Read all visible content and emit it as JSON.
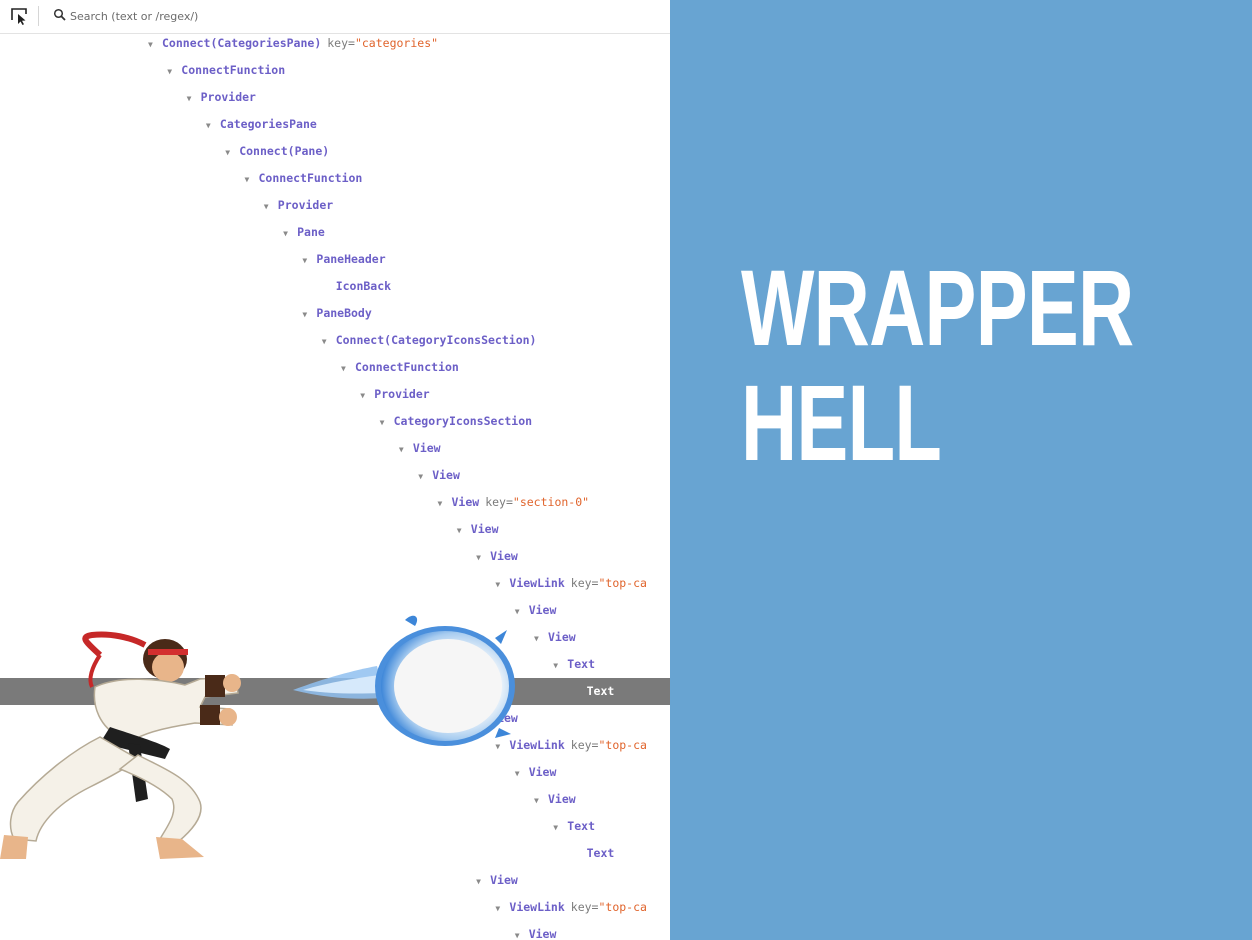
{
  "toolbar": {
    "inspect_icon": "cursor-select-icon",
    "search_icon": "magnifier-icon",
    "search_placeholder": "Search (text or /regex/)"
  },
  "tree": [
    {
      "depth": 0,
      "arrow": true,
      "tag": "Connect(CategoriesPane)",
      "attr": "key=",
      "value": "\"categories\""
    },
    {
      "depth": 1,
      "arrow": true,
      "tag": "ConnectFunction"
    },
    {
      "depth": 2,
      "arrow": true,
      "tag": "Provider"
    },
    {
      "depth": 3,
      "arrow": true,
      "tag": "CategoriesPane"
    },
    {
      "depth": 4,
      "arrow": true,
      "tag": "Connect(Pane)"
    },
    {
      "depth": 5,
      "arrow": true,
      "tag": "ConnectFunction"
    },
    {
      "depth": 6,
      "arrow": true,
      "tag": "Provider"
    },
    {
      "depth": 7,
      "arrow": true,
      "tag": "Pane"
    },
    {
      "depth": 8,
      "arrow": true,
      "tag": "PaneHeader"
    },
    {
      "depth": 9,
      "arrow": false,
      "tag": "IconBack"
    },
    {
      "depth": 8,
      "arrow": true,
      "tag": "PaneBody"
    },
    {
      "depth": 9,
      "arrow": true,
      "tag": "Connect(CategoryIconsSection)"
    },
    {
      "depth": 10,
      "arrow": true,
      "tag": "ConnectFunction"
    },
    {
      "depth": 11,
      "arrow": true,
      "tag": "Provider"
    },
    {
      "depth": 12,
      "arrow": true,
      "tag": "CategoryIconsSection"
    },
    {
      "depth": 13,
      "arrow": true,
      "tag": "View"
    },
    {
      "depth": 14,
      "arrow": true,
      "tag": "View"
    },
    {
      "depth": 15,
      "arrow": true,
      "tag": "View",
      "attr": "key=",
      "value": "\"section-0\""
    },
    {
      "depth": 16,
      "arrow": true,
      "tag": "View"
    },
    {
      "depth": 17,
      "arrow": true,
      "tag": "View"
    },
    {
      "depth": 18,
      "arrow": true,
      "tag": "ViewLink",
      "attr": "key=",
      "value": "\"top-ca"
    },
    {
      "depth": 19,
      "arrow": true,
      "tag": "View"
    },
    {
      "depth": 20,
      "arrow": true,
      "tag": "View"
    },
    {
      "depth": 21,
      "arrow": true,
      "tag": "Text"
    },
    {
      "depth": 22,
      "arrow": false,
      "tag": "Text",
      "selected": true
    },
    {
      "depth": 17,
      "arrow": true,
      "tag": "View"
    },
    {
      "depth": 18,
      "arrow": true,
      "tag": "ViewLink",
      "attr": "key=",
      "value": "\"top-ca"
    },
    {
      "depth": 19,
      "arrow": true,
      "tag": "View"
    },
    {
      "depth": 20,
      "arrow": true,
      "tag": "View"
    },
    {
      "depth": 21,
      "arrow": true,
      "tag": "Text"
    },
    {
      "depth": 22,
      "arrow": false,
      "tag": "Text"
    },
    {
      "depth": 17,
      "arrow": true,
      "tag": "View"
    },
    {
      "depth": 18,
      "arrow": true,
      "tag": "ViewLink",
      "attr": "key=",
      "value": "\"top-ca"
    },
    {
      "depth": 19,
      "arrow": true,
      "tag": "View"
    }
  ],
  "slide": {
    "title_line1": "WRAPPER",
    "title_line2": "HELL"
  },
  "colors": {
    "accent_panel": "#68a4d2",
    "tag": "#6c5fc7",
    "attr_value": "#e0642c",
    "selection": "#7a7a7a"
  },
  "illustrations": [
    "street-fighter-ryu-image",
    "hadouken-fireball-image"
  ]
}
